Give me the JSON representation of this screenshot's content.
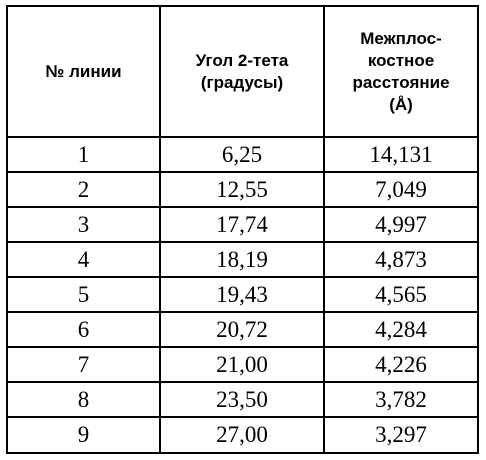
{
  "table": {
    "headers": {
      "col1": "№ линии",
      "col2": [
        "Угол 2-тета",
        "(градусы)"
      ],
      "col3": [
        "Межплос-",
        "костное",
        "расстояние",
        "(Å)"
      ]
    },
    "rows": [
      [
        "1",
        "6,25",
        "14,131"
      ],
      [
        "2",
        "12,55",
        "7,049"
      ],
      [
        "3",
        "17,74",
        "4,997"
      ],
      [
        "4",
        "18,19",
        "4,873"
      ],
      [
        "5",
        "19,43",
        "4,565"
      ],
      [
        "6",
        "20,72",
        "4,284"
      ],
      [
        "7",
        "21,00",
        "4,226"
      ],
      [
        "8",
        "23,50",
        "3,782"
      ],
      [
        "9",
        "27,00",
        "3,297"
      ]
    ]
  }
}
